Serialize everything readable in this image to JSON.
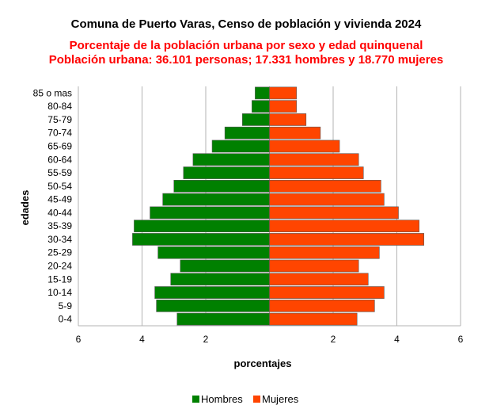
{
  "chart_data": {
    "type": "bar",
    "orientation": "horizontal",
    "title": "Comuna de Puerto Varas, Censo de población y vivienda 2024",
    "subtitle_lines": [
      "Porcentaje de la población urbana por sexo y edad quinquenal",
      "Población urbana: 36.101 personas; 17.331 hombres y 18.770 mujeres"
    ],
    "xlabel": "porcentajes",
    "ylabel": "edades",
    "xlim": [
      -6,
      6
    ],
    "xticks": [
      -6,
      -4,
      -2,
      0,
      2,
      4,
      6
    ],
    "xtick_labels": [
      "6",
      "4",
      "2",
      "",
      "2",
      "4",
      "6"
    ],
    "categories": [
      "0-4",
      "5-9",
      "10-14",
      "15-19",
      "20-24",
      "25-29",
      "30-34",
      "35-39",
      "40-44",
      "45-49",
      "50-54",
      "55-59",
      "60-64",
      "65-69",
      "70-74",
      "75-79",
      "80-84",
      "85 o mas"
    ],
    "series": [
      {
        "name": "Hombres",
        "color": "#008000",
        "values": [
          2.9,
          3.55,
          3.6,
          3.1,
          2.8,
          3.5,
          4.3,
          4.25,
          3.75,
          3.35,
          3.0,
          2.7,
          2.4,
          1.8,
          1.4,
          0.85,
          0.55,
          0.45
        ]
      },
      {
        "name": "Mujeres",
        "color": "#ff4500",
        "values": [
          2.75,
          3.3,
          3.6,
          3.1,
          2.8,
          3.45,
          4.85,
          4.7,
          4.05,
          3.6,
          3.5,
          2.95,
          2.8,
          2.2,
          1.6,
          1.15,
          0.85,
          0.85
        ]
      }
    ],
    "grid": "vertical",
    "legend_position": "bottom"
  }
}
